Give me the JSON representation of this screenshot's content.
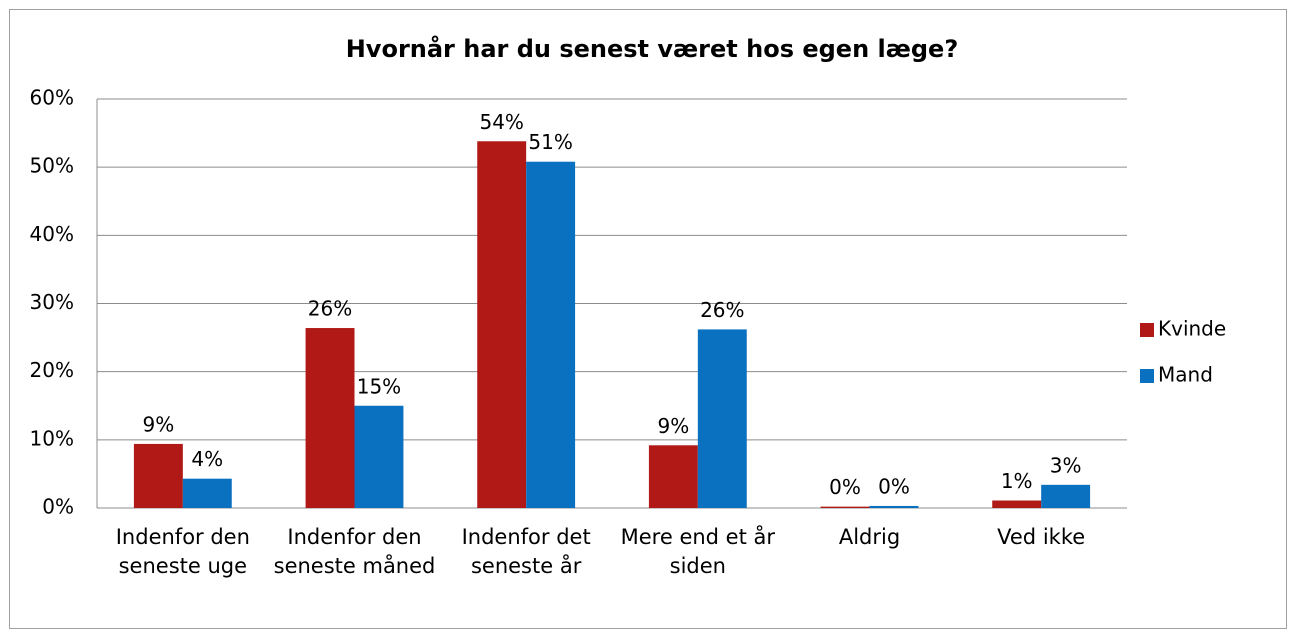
{
  "chart_data": {
    "type": "bar",
    "title": "Hvornår har du senest været hos egen læge?",
    "categories": [
      "Indenfor den seneste uge",
      "Indenfor den seneste måned",
      "Indenfor det seneste år",
      "Mere end et år siden",
      "Aldrig",
      "Ved ikke"
    ],
    "series": [
      {
        "name": "Kvinde",
        "color": "#b01916",
        "values": [
          9.4,
          26.4,
          53.8,
          9.2,
          0.2,
          1.1
        ],
        "value_labels": [
          "9%",
          "26%",
          "54%",
          "9%",
          "0%",
          "1%"
        ]
      },
      {
        "name": "Mand",
        "color": "#0a70c0",
        "values": [
          4.3,
          15,
          50.8,
          26.2,
          0.3,
          3.4
        ],
        "value_labels": [
          "4%",
          "15%",
          "51%",
          "26%",
          "0%",
          "3%"
        ]
      }
    ],
    "ylim": [
      0,
      60
    ],
    "yticks": [
      {
        "value": 0,
        "label": "0%"
      },
      {
        "value": 10,
        "label": "10%"
      },
      {
        "value": 20,
        "label": "20%"
      },
      {
        "value": 30,
        "label": "30%"
      },
      {
        "value": 40,
        "label": "40%"
      },
      {
        "value": 50,
        "label": "50%"
      },
      {
        "value": 60,
        "label": "60%"
      }
    ],
    "grid": true,
    "legend": "right"
  }
}
